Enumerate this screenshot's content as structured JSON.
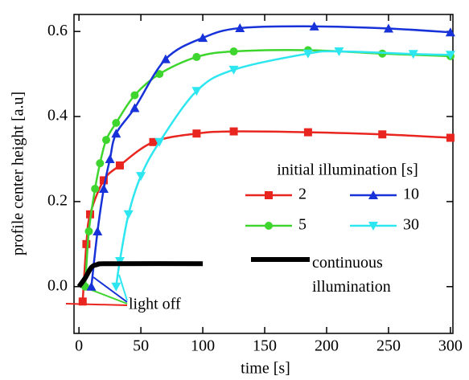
{
  "chart_data": {
    "type": "line",
    "xlabel": "time [s]",
    "ylabel": "profile center height [a.u]",
    "xlim": [
      -4,
      302
    ],
    "ylim": [
      -0.11,
      0.64
    ],
    "xticks": [
      0,
      50,
      100,
      150,
      200,
      250,
      300
    ],
    "yticks": [
      {
        "value": 0,
        "label": "0.0"
      },
      {
        "value": 0.2,
        "label": "0.2"
      },
      {
        "value": 0.4,
        "label": "0.4"
      },
      {
        "value": 0.6,
        "label": "0.6"
      }
    ],
    "legend_title": "initial illumination [s]",
    "annotation": "light off",
    "series": [
      {
        "name": "2",
        "color": "#e8261f",
        "marker": "square",
        "x": [
          3,
          6,
          9,
          20,
          33,
          60,
          95,
          125,
          185,
          245,
          300
        ],
        "values": [
          -0.035,
          0.1,
          0.17,
          0.25,
          0.285,
          0.34,
          0.36,
          0.365,
          0.363,
          0.358,
          0.35
        ]
      },
      {
        "name": "5",
        "color": "#3ed62e",
        "marker": "circle",
        "x": [
          5,
          8,
          13,
          17,
          22,
          30,
          45,
          65,
          95,
          125,
          185,
          245,
          300
        ],
        "values": [
          0,
          0.13,
          0.23,
          0.29,
          0.345,
          0.385,
          0.45,
          0.5,
          0.54,
          0.553,
          0.556,
          0.548,
          0.542
        ]
      },
      {
        "name": "10",
        "color": "#1632d8",
        "marker": "triangle-up",
        "x": [
          10,
          15,
          20,
          25,
          30,
          45,
          70,
          100,
          130,
          190,
          250,
          300
        ],
        "values": [
          0,
          0.13,
          0.23,
          0.3,
          0.36,
          0.42,
          0.535,
          0.585,
          0.608,
          0.612,
          0.607,
          0.598
        ]
      },
      {
        "name": "30",
        "color": "#2ee6f0",
        "marker": "triangle-down",
        "x": [
          30,
          33,
          40,
          50,
          65,
          95,
          125,
          185,
          210,
          270,
          300
        ],
        "values": [
          0,
          0.06,
          0.17,
          0.26,
          0.34,
          0.46,
          0.51,
          0.548,
          0.553,
          0.547,
          0.545
        ]
      },
      {
        "name": "continuous illumination",
        "color": "#000000",
        "marker": "none",
        "x": [
          0,
          5,
          10,
          15,
          25,
          100
        ],
        "values": [
          0,
          0.02,
          0.045,
          0.052,
          0.054,
          0.054
        ]
      }
    ]
  }
}
